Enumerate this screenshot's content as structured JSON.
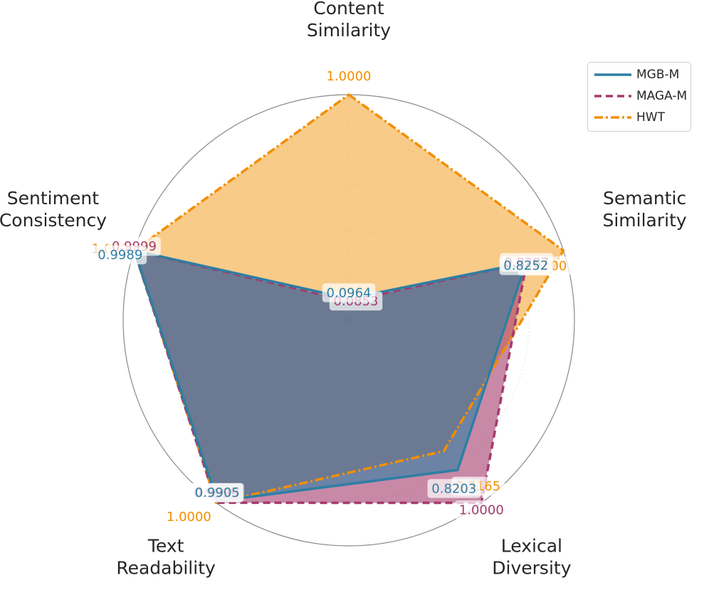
{
  "chart_data": {
    "type": "radar",
    "axes": [
      [
        "Content",
        "Similarity"
      ],
      [
        "Semantic",
        "Similarity"
      ],
      [
        "Lexical",
        "Diversity"
      ],
      [
        "Text",
        "Readability"
      ],
      [
        "Sentiment",
        "Consistency"
      ]
    ],
    "rlim": [
      0,
      1
    ],
    "center_tick": "0.0",
    "grid": true,
    "legend_position": "top-right",
    "series": [
      {
        "name": "HWT",
        "values": [
          1.0,
          1.0,
          0.7165,
          1.0,
          1.0
        ],
        "labels": [
          "1.0000",
          "1.0000",
          "0.7165",
          "1.0000",
          "1.0000"
        ],
        "color": "#F28E00",
        "fill_color": "#F5A93A",
        "style": "dashdot"
      },
      {
        "name": "MAGA-M",
        "values": [
          0.0853,
          0.8287,
          1.0,
          0.9999,
          0.9999
        ],
        "labels": [
          "0.0853",
          "0.8287",
          "1.0000",
          "0.9999",
          "0.9999"
        ],
        "color": "#A43B6D",
        "fill_color": "#A43B6D",
        "style": "dashed"
      },
      {
        "name": "MGB-M",
        "values": [
          0.0964,
          0.8252,
          0.8203,
          0.9905,
          0.9989
        ],
        "labels": [
          "0.0964",
          "0.8252",
          "0.8203",
          "0.9905",
          "0.9989"
        ],
        "color": "#2E7EA3",
        "fill_color": "#2E7EA3",
        "style": "solid"
      }
    ],
    "legend_order": [
      "MGB-M",
      "MAGA-M",
      "HWT"
    ]
  }
}
